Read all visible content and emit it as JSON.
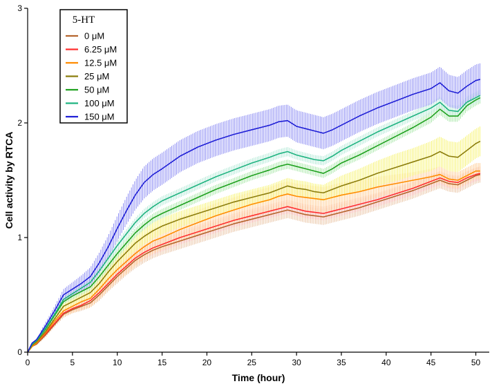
{
  "chart_data": {
    "type": "line",
    "title": "",
    "xlabel": "Time (hour)",
    "ylabel": "Cell activity by RTCA",
    "xlim": [
      0,
      51.5
    ],
    "ylim": [
      0,
      3
    ],
    "x_ticks": [
      0,
      5,
      10,
      15,
      20,
      25,
      30,
      35,
      40,
      45,
      50
    ],
    "y_ticks": [
      0,
      1,
      2,
      3
    ],
    "x_tick_labels": [
      "0",
      "5",
      "10",
      "15",
      "20",
      "25",
      "30",
      "35",
      "40",
      "45",
      "50"
    ],
    "y_tick_labels": [
      "0",
      "1",
      "2",
      "3"
    ],
    "legend_title": "5-HT",
    "legend_position": "top-left",
    "x": [
      0,
      0.5,
      1,
      2,
      3,
      4,
      5,
      6,
      7,
      8,
      9,
      10,
      11,
      12,
      13,
      14,
      15,
      17,
      19,
      21,
      23,
      25,
      27,
      28,
      29,
      30,
      31,
      32,
      33,
      34,
      35,
      37,
      39,
      41,
      43,
      45,
      46,
      47,
      48,
      49,
      50,
      50.5
    ],
    "series": [
      {
        "name": "0 μM",
        "color": "#b5652d",
        "band_color": "#e3b38a",
        "values": [
          0,
          0.05,
          0.07,
          0.15,
          0.24,
          0.33,
          0.37,
          0.4,
          0.43,
          0.5,
          0.58,
          0.66,
          0.73,
          0.8,
          0.85,
          0.89,
          0.92,
          0.97,
          1.02,
          1.07,
          1.12,
          1.16,
          1.2,
          1.22,
          1.24,
          1.22,
          1.2,
          1.19,
          1.18,
          1.2,
          1.22,
          1.26,
          1.31,
          1.36,
          1.41,
          1.47,
          1.5,
          1.47,
          1.46,
          1.5,
          1.54,
          1.55
        ],
        "errors": [
          0,
          0.01,
          0.01,
          0.02,
          0.02,
          0.03,
          0.03,
          0.04,
          0.04,
          0.05,
          0.05,
          0.06,
          0.06,
          0.07,
          0.07,
          0.07,
          0.07,
          0.07,
          0.07,
          0.07,
          0.07,
          0.07,
          0.07,
          0.07,
          0.07,
          0.07,
          0.07,
          0.07,
          0.07,
          0.07,
          0.07,
          0.07,
          0.07,
          0.07,
          0.07,
          0.07,
          0.07,
          0.07,
          0.07,
          0.07,
          0.07,
          0.07
        ]
      },
      {
        "name": "6.25 μM",
        "color": "#ff2e2e",
        "band_color": "#f7a3a3",
        "values": [
          0,
          0.05,
          0.08,
          0.16,
          0.25,
          0.34,
          0.38,
          0.41,
          0.45,
          0.52,
          0.6,
          0.68,
          0.75,
          0.82,
          0.87,
          0.91,
          0.94,
          1.0,
          1.05,
          1.1,
          1.15,
          1.19,
          1.23,
          1.25,
          1.27,
          1.25,
          1.23,
          1.22,
          1.21,
          1.23,
          1.25,
          1.29,
          1.33,
          1.38,
          1.43,
          1.49,
          1.52,
          1.49,
          1.48,
          1.52,
          1.55,
          1.56
        ],
        "errors": [
          0,
          0.01,
          0.01,
          0.02,
          0.02,
          0.03,
          0.03,
          0.04,
          0.04,
          0.05,
          0.05,
          0.06,
          0.06,
          0.06,
          0.06,
          0.06,
          0.06,
          0.06,
          0.06,
          0.06,
          0.06,
          0.06,
          0.06,
          0.06,
          0.06,
          0.06,
          0.06,
          0.06,
          0.06,
          0.06,
          0.06,
          0.06,
          0.06,
          0.06,
          0.06,
          0.06,
          0.06,
          0.06,
          0.06,
          0.06,
          0.06,
          0.06
        ]
      },
      {
        "name": "12.5 μM",
        "color": "#ff8c00",
        "band_color": "#ffbd73",
        "values": [
          0,
          0.05,
          0.08,
          0.17,
          0.27,
          0.36,
          0.4,
          0.44,
          0.47,
          0.55,
          0.64,
          0.72,
          0.79,
          0.86,
          0.92,
          0.97,
          1.0,
          1.07,
          1.13,
          1.19,
          1.24,
          1.29,
          1.33,
          1.36,
          1.38,
          1.36,
          1.35,
          1.34,
          1.33,
          1.35,
          1.37,
          1.4,
          1.44,
          1.47,
          1.5,
          1.53,
          1.55,
          1.51,
          1.5,
          1.54,
          1.58,
          1.58
        ],
        "errors": [
          0,
          0.01,
          0.02,
          0.03,
          0.04,
          0.05,
          0.06,
          0.07,
          0.08,
          0.09,
          0.1,
          0.1,
          0.11,
          0.11,
          0.11,
          0.11,
          0.11,
          0.11,
          0.11,
          0.11,
          0.11,
          0.11,
          0.11,
          0.11,
          0.11,
          0.11,
          0.11,
          0.11,
          0.11,
          0.11,
          0.11,
          0.1,
          0.09,
          0.08,
          0.07,
          0.07,
          0.07,
          0.07,
          0.07,
          0.07,
          0.07,
          0.07
        ]
      },
      {
        "name": "25 μM",
        "color": "#8b7d0c",
        "band_color": "#f5f04a",
        "values": [
          0,
          0.06,
          0.09,
          0.18,
          0.29,
          0.4,
          0.44,
          0.48,
          0.52,
          0.6,
          0.7,
          0.79,
          0.87,
          0.95,
          1.01,
          1.06,
          1.1,
          1.16,
          1.21,
          1.26,
          1.31,
          1.35,
          1.39,
          1.42,
          1.45,
          1.43,
          1.42,
          1.4,
          1.39,
          1.42,
          1.45,
          1.5,
          1.56,
          1.61,
          1.66,
          1.71,
          1.75,
          1.71,
          1.7,
          1.76,
          1.82,
          1.84
        ],
        "errors": [
          0,
          0.01,
          0.01,
          0.02,
          0.03,
          0.03,
          0.04,
          0.04,
          0.05,
          0.05,
          0.06,
          0.06,
          0.06,
          0.07,
          0.07,
          0.07,
          0.07,
          0.07,
          0.07,
          0.07,
          0.07,
          0.07,
          0.07,
          0.07,
          0.07,
          0.07,
          0.07,
          0.07,
          0.07,
          0.08,
          0.09,
          0.1,
          0.11,
          0.12,
          0.12,
          0.13,
          0.13,
          0.13,
          0.13,
          0.13,
          0.13,
          0.13
        ]
      },
      {
        "name": "50 μM",
        "color": "#1fa11f",
        "band_color": "#8fe08f",
        "values": [
          0,
          0.07,
          0.1,
          0.2,
          0.32,
          0.44,
          0.49,
          0.53,
          0.57,
          0.66,
          0.76,
          0.86,
          0.95,
          1.04,
          1.11,
          1.17,
          1.21,
          1.28,
          1.35,
          1.42,
          1.48,
          1.54,
          1.59,
          1.62,
          1.64,
          1.62,
          1.6,
          1.58,
          1.56,
          1.6,
          1.65,
          1.72,
          1.8,
          1.88,
          1.96,
          2.05,
          2.12,
          2.06,
          2.06,
          2.15,
          2.2,
          2.22
        ],
        "errors": [
          0,
          0.01,
          0.01,
          0.02,
          0.02,
          0.02,
          0.03,
          0.03,
          0.03,
          0.03,
          0.04,
          0.04,
          0.04,
          0.04,
          0.04,
          0.04,
          0.04,
          0.04,
          0.04,
          0.04,
          0.04,
          0.04,
          0.04,
          0.04,
          0.04,
          0.04,
          0.04,
          0.04,
          0.04,
          0.04,
          0.04,
          0.04,
          0.04,
          0.04,
          0.04,
          0.05,
          0.05,
          0.05,
          0.05,
          0.05,
          0.05,
          0.05
        ]
      },
      {
        "name": "100 μM",
        "color": "#1fb380",
        "band_color": "#9fe3cc",
        "values": [
          0,
          0.07,
          0.1,
          0.21,
          0.33,
          0.46,
          0.51,
          0.56,
          0.61,
          0.71,
          0.82,
          0.93,
          1.03,
          1.13,
          1.21,
          1.27,
          1.32,
          1.39,
          1.46,
          1.53,
          1.59,
          1.65,
          1.7,
          1.73,
          1.75,
          1.72,
          1.7,
          1.68,
          1.67,
          1.71,
          1.76,
          1.84,
          1.92,
          1.99,
          2.06,
          2.13,
          2.18,
          2.11,
          2.1,
          2.18,
          2.22,
          2.24
        ],
        "errors": [
          0,
          0.01,
          0.01,
          0.02,
          0.02,
          0.03,
          0.03,
          0.03,
          0.03,
          0.03,
          0.04,
          0.04,
          0.04,
          0.04,
          0.04,
          0.04,
          0.04,
          0.04,
          0.04,
          0.04,
          0.04,
          0.04,
          0.04,
          0.04,
          0.04,
          0.04,
          0.04,
          0.04,
          0.04,
          0.04,
          0.04,
          0.04,
          0.04,
          0.04,
          0.04,
          0.05,
          0.05,
          0.05,
          0.05,
          0.05,
          0.05,
          0.05
        ]
      },
      {
        "name": "150 μM",
        "color": "#1f1fd6",
        "band_color": "#6b6bf0",
        "values": [
          0,
          0.08,
          0.11,
          0.23,
          0.36,
          0.5,
          0.55,
          0.6,
          0.66,
          0.78,
          0.92,
          1.08,
          1.23,
          1.37,
          1.48,
          1.55,
          1.6,
          1.71,
          1.79,
          1.85,
          1.9,
          1.94,
          1.98,
          2.01,
          2.02,
          1.97,
          1.95,
          1.93,
          1.91,
          1.94,
          1.98,
          2.06,
          2.13,
          2.19,
          2.25,
          2.3,
          2.35,
          2.28,
          2.26,
          2.32,
          2.37,
          2.38
        ],
        "errors": [
          0,
          0.01,
          0.02,
          0.03,
          0.04,
          0.05,
          0.06,
          0.07,
          0.08,
          0.09,
          0.1,
          0.11,
          0.12,
          0.13,
          0.14,
          0.14,
          0.14,
          0.14,
          0.14,
          0.14,
          0.14,
          0.14,
          0.14,
          0.14,
          0.14,
          0.14,
          0.14,
          0.14,
          0.14,
          0.14,
          0.14,
          0.14,
          0.14,
          0.14,
          0.14,
          0.14,
          0.14,
          0.14,
          0.14,
          0.14,
          0.14,
          0.14
        ]
      }
    ]
  }
}
